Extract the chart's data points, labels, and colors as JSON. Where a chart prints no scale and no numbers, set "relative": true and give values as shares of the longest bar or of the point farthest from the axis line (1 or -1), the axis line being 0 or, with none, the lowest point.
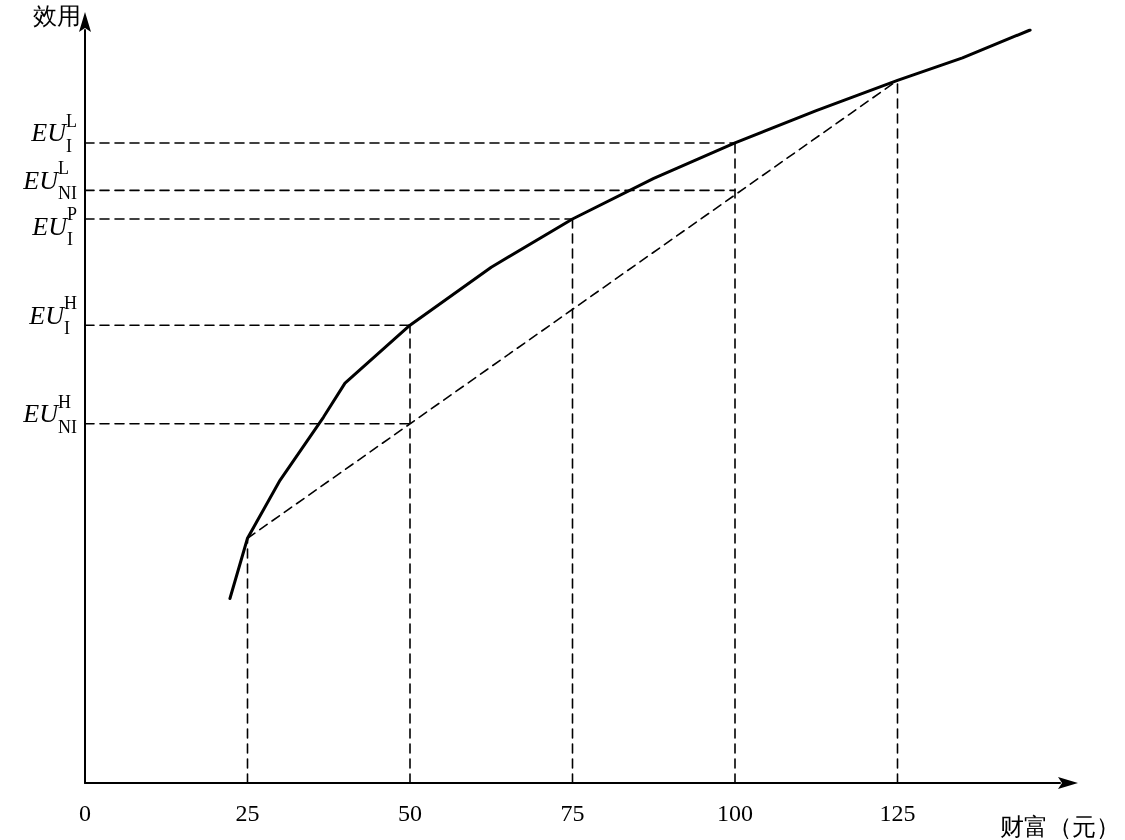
{
  "chart_data": {
    "type": "line",
    "xlabel": "财富（元）",
    "ylabel": "效用",
    "relative": true,
    "xlim": [
      0,
      150
    ],
    "xticks": [
      0,
      25,
      50,
      75,
      100,
      125
    ],
    "series": [
      {
        "color": "#000000",
        "line_style": "solid",
        "x": [
          22.3,
          25,
          30,
          36.7,
          40,
          50,
          62.5,
          75,
          87.5,
          100,
          112.5,
          125,
          135,
          145.4
        ],
        "values": [
          0.245,
          0.325,
          0.402,
          0.486,
          0.531,
          0.608,
          0.685,
          0.749,
          0.803,
          0.85,
          0.893,
          0.933,
          0.963,
          1
        ]
      },
      {
        "color": "#000000",
        "line_style": "dashed",
        "x": [
          25,
          125
        ],
        "values": [
          0.325,
          0.933
        ]
      },
      {
        "color": "#000000",
        "line_style": "dashed",
        "x": [
          25,
          25
        ],
        "values": [
          0,
          0.325
        ]
      },
      {
        "color": "#000000",
        "line_style": "dashed",
        "x": [
          50,
          50
        ],
        "values": [
          0,
          0.608
        ]
      },
      {
        "color": "#000000",
        "line_style": "dashed",
        "x": [
          75,
          75
        ],
        "values": [
          0,
          0.749
        ]
      },
      {
        "color": "#000000",
        "line_style": "dashed",
        "x": [
          100,
          100
        ],
        "values": [
          0,
          0.85
        ]
      },
      {
        "color": "#000000",
        "line_style": "dashed",
        "x": [
          125,
          125
        ],
        "values": [
          0,
          0.933
        ]
      },
      {
        "name": "EU$^{L}$$_{I}$",
        "color": "#000000",
        "line_style": "dashed",
        "x": [
          0,
          100
        ],
        "values": [
          0.85,
          0.85
        ]
      },
      {
        "name": "EU$^{L}$$_{NI}$",
        "color": "#000000",
        "line_style": "dashed",
        "x": [
          0,
          100
        ],
        "values": [
          0.787,
          0.787
        ]
      },
      {
        "name": "EU$^{P}$$_{I}$",
        "color": "#000000",
        "line_style": "dashed",
        "x": [
          0,
          75
        ],
        "values": [
          0.749,
          0.749
        ]
      },
      {
        "name": "EU$^{H}$$_{I}$",
        "color": "#000000",
        "line_style": "dashed",
        "x": [
          0,
          50
        ],
        "values": [
          0.608,
          0.608
        ]
      },
      {
        "name": "EU$^{H}$$_{NI}$",
        "color": "#000000",
        "line_style": "dashed",
        "x": [
          0,
          50
        ],
        "values": [
          0.477,
          0.477
        ]
      }
    ]
  }
}
